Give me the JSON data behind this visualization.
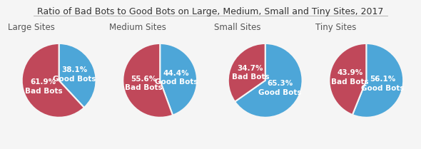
{
  "title": "Ratio of Bad Bots to Good Bots on Large, Medium, Small and Tiny Sites, 2017",
  "charts": [
    {
      "label": "Large Sites",
      "good_bots": 38.1,
      "bad_bots": 61.9
    },
    {
      "label": "Medium Sites",
      "good_bots": 44.4,
      "bad_bots": 55.6
    },
    {
      "label": "Small Sites",
      "good_bots": 65.3,
      "bad_bots": 34.7
    },
    {
      "label": "Tiny Sites",
      "good_bots": 56.1,
      "bad_bots": 43.9
    }
  ],
  "color_good": "#4DA6D8",
  "color_bad": "#C0485A",
  "background_color": "#f5f5f5",
  "title_fontsize": 9,
  "label_fontsize": 8.5,
  "pie_label_fontsize": 7.5,
  "subtitle_fontsize": 9
}
